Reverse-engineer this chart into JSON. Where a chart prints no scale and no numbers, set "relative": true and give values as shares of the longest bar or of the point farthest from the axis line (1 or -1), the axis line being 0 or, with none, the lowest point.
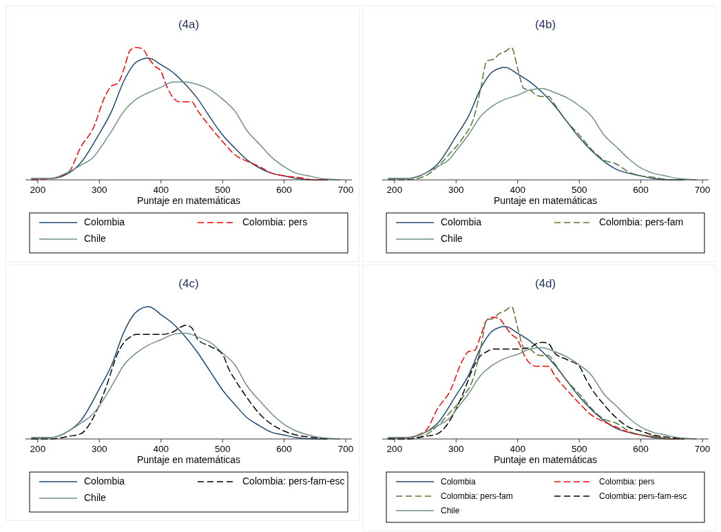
{
  "chart_data": [
    {
      "type": "line",
      "title": "(4a)",
      "xlabel": "Puntaje en matemáticas",
      "relative": true,
      "xlim": [
        180,
        710
      ],
      "xticks": [
        200,
        300,
        400,
        500,
        600,
        700
      ],
      "legend": "bottom",
      "series": [
        {
          "name": "Colombia",
          "color": "#1a476f",
          "line_style": "solid",
          "x": [
            190,
            220,
            250,
            270,
            300,
            320,
            340,
            360,
            380,
            400,
            420,
            440,
            460,
            480,
            500,
            520,
            540,
            560,
            580,
            600,
            620,
            650,
            670
          ],
          "values": [
            0.01,
            0.01,
            0.05,
            0.13,
            0.35,
            0.52,
            0.75,
            0.89,
            0.92,
            0.87,
            0.81,
            0.72,
            0.61,
            0.47,
            0.34,
            0.24,
            0.15,
            0.09,
            0.05,
            0.03,
            0.01,
            0,
            0
          ]
        },
        {
          "name": "Colombia: pers",
          "color": "#ff0000",
          "line_style": "dashed",
          "x": [
            190,
            220,
            250,
            270,
            290,
            310,
            320,
            330,
            340,
            350,
            360,
            370,
            380,
            390,
            400,
            410,
            420,
            430,
            450,
            460,
            480,
            500,
            520,
            540,
            560,
            580,
            600,
            620,
            650,
            670
          ],
          "values": [
            0,
            0.01,
            0.06,
            0.25,
            0.39,
            0.64,
            0.71,
            0.73,
            0.84,
            0.98,
            1,
            0.99,
            0.92,
            0.86,
            0.82,
            0.7,
            0.62,
            0.59,
            0.59,
            0.52,
            0.4,
            0.29,
            0.19,
            0.14,
            0.1,
            0.05,
            0.03,
            0.02,
            0,
            0
          ]
        },
        {
          "name": "Chile",
          "color": "#6f8f86",
          "line_style": "solid",
          "x": [
            190,
            220,
            250,
            270,
            290,
            300,
            320,
            340,
            360,
            380,
            400,
            420,
            440,
            460,
            480,
            500,
            520,
            540,
            560,
            580,
            600,
            620,
            640,
            660,
            690
          ],
          "values": [
            0.01,
            0.01,
            0.06,
            0.11,
            0.17,
            0.23,
            0.37,
            0.52,
            0.61,
            0.66,
            0.7,
            0.74,
            0.74,
            0.72,
            0.68,
            0.61,
            0.52,
            0.37,
            0.27,
            0.17,
            0.1,
            0.05,
            0.03,
            0.01,
            0
          ]
        }
      ]
    },
    {
      "type": "line",
      "title": "(4b)",
      "xlabel": "Puntaje en matemáticas",
      "relative": true,
      "xlim": [
        180,
        710
      ],
      "xticks": [
        200,
        300,
        400,
        500,
        600,
        700
      ],
      "legend": "bottom",
      "series": [
        {
          "name": "Colombia",
          "color": "#1a476f",
          "line_style": "solid",
          "x": [
            190,
            220,
            250,
            270,
            300,
            320,
            340,
            360,
            380,
            400,
            420,
            440,
            460,
            480,
            500,
            520,
            540,
            560,
            580,
            600,
            620,
            650,
            670
          ],
          "values": [
            0.01,
            0.01,
            0.05,
            0.12,
            0.33,
            0.48,
            0.69,
            0.82,
            0.85,
            0.8,
            0.74,
            0.66,
            0.56,
            0.44,
            0.32,
            0.22,
            0.14,
            0.08,
            0.05,
            0.03,
            0.01,
            0,
            0
          ]
        },
        {
          "name": "Colombia: pers-fam",
          "color": "#55752f",
          "line_style": "dashed",
          "x": [
            190,
            220,
            250,
            270,
            290,
            310,
            330,
            340,
            350,
            360,
            370,
            380,
            390,
            400,
            410,
            420,
            430,
            440,
            450,
            460,
            480,
            500,
            520,
            540,
            560,
            580,
            600,
            620,
            650,
            670
          ],
          "values": [
            0,
            0,
            0.03,
            0.1,
            0.2,
            0.31,
            0.49,
            0.69,
            0.9,
            0.91,
            0.95,
            0.97,
            1,
            0.84,
            0.69,
            0.68,
            0.64,
            0.63,
            0.63,
            0.57,
            0.44,
            0.34,
            0.23,
            0.15,
            0.12,
            0.06,
            0.03,
            0.02,
            0,
            0
          ]
        },
        {
          "name": "Chile",
          "color": "#6f8f86",
          "line_style": "solid",
          "x": [
            190,
            220,
            250,
            270,
            290,
            300,
            320,
            340,
            360,
            380,
            400,
            420,
            440,
            460,
            480,
            500,
            520,
            540,
            560,
            580,
            600,
            620,
            640,
            660,
            690
          ],
          "values": [
            0.01,
            0.01,
            0.05,
            0.1,
            0.16,
            0.22,
            0.34,
            0.48,
            0.56,
            0.61,
            0.64,
            0.68,
            0.69,
            0.66,
            0.62,
            0.56,
            0.48,
            0.34,
            0.25,
            0.16,
            0.09,
            0.05,
            0.03,
            0.01,
            0
          ]
        }
      ]
    },
    {
      "type": "line",
      "title": "(4c)",
      "xlabel": "Puntaje en matemáticas",
      "relative": true,
      "xlim": [
        180,
        710
      ],
      "xticks": [
        200,
        300,
        400,
        500,
        600,
        700
      ],
      "legend": "bottom",
      "series": [
        {
          "name": "Colombia",
          "color": "#1a476f",
          "line_style": "solid",
          "x": [
            190,
            220,
            250,
            270,
            300,
            320,
            340,
            360,
            380,
            400,
            420,
            440,
            460,
            480,
            500,
            520,
            540,
            560,
            580,
            600,
            620,
            650,
            670
          ],
          "values": [
            0.01,
            0.01,
            0.06,
            0.14,
            0.38,
            0.56,
            0.81,
            0.96,
            1,
            0.94,
            0.87,
            0.77,
            0.65,
            0.51,
            0.37,
            0.26,
            0.16,
            0.1,
            0.05,
            0.03,
            0.01,
            0,
            0
          ]
        },
        {
          "name": "Colombia: pers-fam-esc",
          "color": "#000000",
          "line_style": "dashed",
          "x": [
            190,
            220,
            250,
            270,
            290,
            310,
            330,
            340,
            350,
            360,
            380,
            400,
            420,
            430,
            440,
            450,
            460,
            480,
            500,
            510,
            520,
            540,
            560,
            580,
            600,
            620,
            650,
            670
          ],
          "values": [
            0,
            0,
            0.02,
            0.04,
            0.16,
            0.38,
            0.65,
            0.73,
            0.77,
            0.79,
            0.79,
            0.79,
            0.81,
            0.84,
            0.86,
            0.84,
            0.75,
            0.7,
            0.64,
            0.53,
            0.45,
            0.31,
            0.19,
            0.11,
            0.06,
            0.03,
            0.01,
            0
          ]
        },
        {
          "name": "Chile",
          "color": "#6f8f86",
          "line_style": "solid",
          "x": [
            190,
            220,
            250,
            270,
            290,
            300,
            320,
            340,
            360,
            380,
            400,
            420,
            440,
            460,
            480,
            500,
            520,
            540,
            560,
            580,
            600,
            620,
            640,
            660,
            690
          ],
          "values": [
            0.01,
            0.01,
            0.06,
            0.12,
            0.19,
            0.25,
            0.4,
            0.56,
            0.65,
            0.71,
            0.75,
            0.79,
            0.8,
            0.77,
            0.73,
            0.65,
            0.56,
            0.4,
            0.29,
            0.19,
            0.11,
            0.06,
            0.03,
            0.01,
            0
          ]
        }
      ]
    },
    {
      "type": "line",
      "title": "(4d)",
      "xlabel": "Puntaje en matemáticas",
      "relative": true,
      "xlim": [
        180,
        710
      ],
      "xticks": [
        200,
        300,
        400,
        500,
        600,
        700
      ],
      "legend": "bottom",
      "series": [
        {
          "name": "Colombia",
          "color": "#1a476f",
          "line_style": "solid",
          "x": [
            190,
            220,
            250,
            270,
            300,
            320,
            340,
            360,
            380,
            400,
            420,
            440,
            460,
            480,
            500,
            520,
            540,
            560,
            580,
            600,
            620,
            650,
            670
          ],
          "values": [
            0.01,
            0.01,
            0.05,
            0.12,
            0.33,
            0.48,
            0.69,
            0.82,
            0.85,
            0.8,
            0.74,
            0.66,
            0.56,
            0.44,
            0.32,
            0.22,
            0.14,
            0.08,
            0.05,
            0.03,
            0.01,
            0,
            0
          ]
        },
        {
          "name": "Colombia: pers",
          "color": "#ff0000",
          "line_style": "dashed",
          "x": [
            190,
            220,
            250,
            270,
            290,
            310,
            320,
            330,
            340,
            350,
            360,
            370,
            380,
            390,
            400,
            410,
            420,
            430,
            450,
            460,
            480,
            500,
            520,
            540,
            560,
            580,
            600,
            620,
            650,
            670
          ],
          "values": [
            0,
            0.01,
            0.06,
            0.23,
            0.36,
            0.59,
            0.66,
            0.67,
            0.78,
            0.9,
            0.92,
            0.91,
            0.85,
            0.79,
            0.75,
            0.64,
            0.57,
            0.55,
            0.55,
            0.48,
            0.37,
            0.27,
            0.18,
            0.13,
            0.09,
            0.05,
            0.03,
            0.02,
            0,
            0
          ]
        },
        {
          "name": "Colombia: pers-fam",
          "color": "#55752f",
          "line_style": "dashed",
          "x": [
            190,
            220,
            250,
            270,
            290,
            310,
            330,
            340,
            350,
            360,
            370,
            380,
            390,
            400,
            410,
            420,
            430,
            440,
            450,
            460,
            480,
            500,
            520,
            540,
            560,
            580,
            600,
            620,
            650,
            670
          ],
          "values": [
            0,
            0,
            0.03,
            0.1,
            0.2,
            0.31,
            0.49,
            0.69,
            0.9,
            0.91,
            0.95,
            0.97,
            1,
            0.84,
            0.69,
            0.68,
            0.64,
            0.63,
            0.63,
            0.57,
            0.44,
            0.34,
            0.23,
            0.15,
            0.12,
            0.06,
            0.03,
            0.02,
            0,
            0
          ]
        },
        {
          "name": "Colombia: pers-fam-esc",
          "color": "#000000",
          "line_style": "dashed",
          "x": [
            190,
            220,
            250,
            270,
            290,
            310,
            330,
            340,
            350,
            360,
            380,
            400,
            420,
            430,
            440,
            450,
            460,
            480,
            500,
            510,
            520,
            540,
            560,
            580,
            600,
            620,
            650,
            670
          ],
          "values": [
            0,
            0,
            0.02,
            0.04,
            0.14,
            0.33,
            0.56,
            0.63,
            0.66,
            0.68,
            0.68,
            0.68,
            0.69,
            0.72,
            0.73,
            0.72,
            0.65,
            0.6,
            0.55,
            0.46,
            0.38,
            0.26,
            0.16,
            0.09,
            0.06,
            0.03,
            0.01,
            0
          ]
        },
        {
          "name": "Chile",
          "color": "#6f8f86",
          "line_style": "solid",
          "x": [
            190,
            220,
            250,
            270,
            290,
            300,
            320,
            340,
            360,
            380,
            400,
            420,
            440,
            460,
            480,
            500,
            520,
            540,
            560,
            580,
            600,
            620,
            640,
            660,
            690
          ],
          "values": [
            0.01,
            0.01,
            0.05,
            0.1,
            0.16,
            0.22,
            0.34,
            0.48,
            0.56,
            0.61,
            0.64,
            0.68,
            0.69,
            0.66,
            0.62,
            0.56,
            0.48,
            0.34,
            0.25,
            0.16,
            0.09,
            0.05,
            0.03,
            0.01,
            0
          ]
        }
      ]
    }
  ]
}
